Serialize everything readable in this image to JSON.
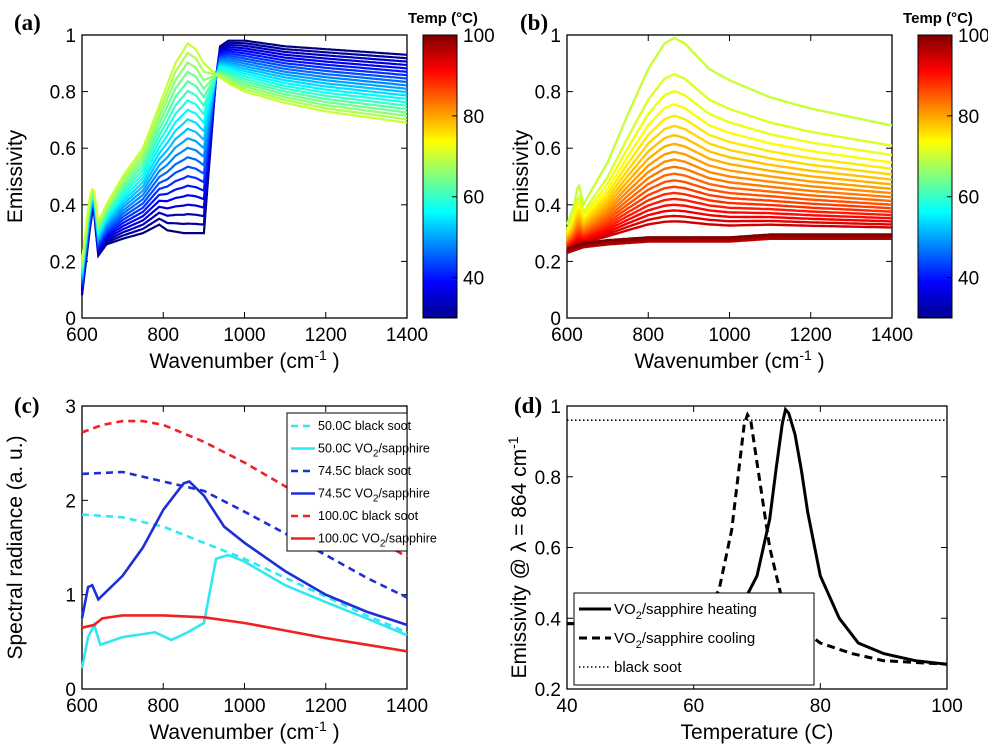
{
  "chart_data": [
    {
      "type": "line",
      "panel": "(a)",
      "xlabel": "Wavenumber (cm⁻¹)",
      "ylabel": "Emissivity",
      "xlim": [
        600,
        1400
      ],
      "ylim": [
        0,
        1
      ],
      "xticks": [
        "600",
        "800",
        "1000",
        "1200",
        "1400"
      ],
      "yticks": [
        "0",
        "0.2",
        "0.4",
        "0.6",
        "0.8",
        "1"
      ],
      "colorbar": {
        "title": "Temp (°C)",
        "range": [
          30,
          100
        ],
        "ticks": [
          "40",
          "60",
          "80",
          "100"
        ],
        "colormap": "jet"
      },
      "temperature_range": [
        30,
        70
      ],
      "curve_count": 21,
      "endpoint_curves": {
        "low_temp": {
          "x": [
            600,
            618,
            628,
            640,
            660,
            700,
            750,
            790,
            810,
            850,
            900,
            930,
            940,
            960,
            1000,
            1100,
            1200,
            1300,
            1400
          ],
          "y": [
            0.08,
            0.3,
            0.4,
            0.22,
            0.26,
            0.28,
            0.3,
            0.33,
            0.31,
            0.3,
            0.3,
            0.85,
            0.96,
            0.98,
            0.98,
            0.96,
            0.95,
            0.94,
            0.93
          ]
        },
        "high_temp": {
          "x": [
            600,
            618,
            628,
            640,
            660,
            700,
            750,
            790,
            830,
            860,
            880,
            900,
            930,
            960,
            1000,
            1100,
            1200,
            1300,
            1400
          ],
          "y": [
            0.2,
            0.42,
            0.47,
            0.34,
            0.4,
            0.5,
            0.6,
            0.75,
            0.9,
            0.97,
            0.95,
            0.9,
            0.86,
            0.83,
            0.8,
            0.76,
            0.73,
            0.71,
            0.69
          ]
        }
      }
    },
    {
      "type": "line",
      "panel": "(b)",
      "xlabel": "Wavenumber (cm⁻¹)",
      "ylabel": "Emissivity",
      "xlim": [
        600,
        1400
      ],
      "ylim": [
        0,
        1
      ],
      "xticks": [
        "600",
        "800",
        "1000",
        "1200",
        "1400"
      ],
      "yticks": [
        "0",
        "0.2",
        "0.4",
        "0.6",
        "0.8",
        "1"
      ],
      "colorbar": {
        "title": "Temp (°C)",
        "range": [
          30,
          100
        ],
        "ticks": [
          "40",
          "60",
          "80",
          "100"
        ],
        "colormap": "jet"
      },
      "temperature_range": [
        70,
        100
      ],
      "curve_count": 24,
      "endpoint_curves": {
        "peak_curve": {
          "x": [
            600,
            618,
            628,
            640,
            660,
            700,
            750,
            800,
            840,
            864,
            890,
            950,
            1000,
            1100,
            1200,
            1300,
            1400
          ],
          "y": [
            0.33,
            0.4,
            0.48,
            0.4,
            0.45,
            0.55,
            0.72,
            0.88,
            0.97,
            0.99,
            0.97,
            0.88,
            0.84,
            0.78,
            0.74,
            0.71,
            0.68
          ]
        },
        "high_temp": {
          "x": [
            600,
            640,
            700,
            800,
            900,
            1000,
            1100,
            1200,
            1300,
            1400
          ],
          "y": [
            0.23,
            0.25,
            0.26,
            0.27,
            0.27,
            0.27,
            0.28,
            0.28,
            0.28,
            0.28
          ]
        }
      }
    },
    {
      "type": "line",
      "panel": "(c)",
      "xlabel": "Wavenumber (cm⁻¹)",
      "ylabel": "Spectral radiance (a. u.)",
      "xlim": [
        600,
        1400
      ],
      "ylim": [
        0,
        3
      ],
      "xticks": [
        "600",
        "800",
        "1000",
        "1200",
        "1400"
      ],
      "yticks": [
        "0",
        "1",
        "2",
        "3"
      ],
      "legend_position": "top-right",
      "series": [
        {
          "name": "50.0C black soot",
          "color": "#33e6f0",
          "dash": "dashed",
          "x": [
            600,
            700,
            800,
            900,
            1000,
            1100,
            1200,
            1300,
            1400
          ],
          "y": [
            1.85,
            1.82,
            1.72,
            1.55,
            1.38,
            1.18,
            0.98,
            0.78,
            0.6
          ]
        },
        {
          "name": "50.0C VO2/sapphire",
          "color": "#33e6f0",
          "dash": "solid",
          "x": [
            600,
            615,
            630,
            645,
            700,
            780,
            820,
            860,
            900,
            930,
            960,
            1000,
            1100,
            1200,
            1300,
            1400
          ],
          "y": [
            0.22,
            0.55,
            0.68,
            0.47,
            0.55,
            0.6,
            0.52,
            0.6,
            0.7,
            1.38,
            1.42,
            1.35,
            1.1,
            0.92,
            0.75,
            0.57
          ]
        },
        {
          "name": "74.5C black soot",
          "color": "#1f2fd6",
          "dash": "dashed",
          "x": [
            600,
            700,
            800,
            900,
            1000,
            1100,
            1200,
            1300,
            1400
          ],
          "y": [
            2.28,
            2.3,
            2.2,
            2.1,
            1.88,
            1.65,
            1.42,
            1.18,
            0.97
          ]
        },
        {
          "name": "74.5C VO2/sapphire",
          "color": "#1f2fd6",
          "dash": "solid",
          "x": [
            600,
            615,
            625,
            640,
            700,
            750,
            800,
            850,
            864,
            900,
            950,
            1000,
            1100,
            1200,
            1300,
            1400
          ],
          "y": [
            0.75,
            1.08,
            1.1,
            0.95,
            1.2,
            1.5,
            1.9,
            2.18,
            2.2,
            2.05,
            1.72,
            1.55,
            1.25,
            1.0,
            0.82,
            0.68
          ]
        },
        {
          "name": "100.0C black soot",
          "color": "#ee2222",
          "dash": "dashed",
          "x": [
            600,
            650,
            700,
            750,
            800,
            900,
            1000,
            1100,
            1200,
            1300,
            1400
          ],
          "y": [
            2.72,
            2.8,
            2.84,
            2.84,
            2.8,
            2.62,
            2.4,
            2.15,
            1.9,
            1.65,
            1.4
          ]
        },
        {
          "name": "100.0C VO2/sapphire",
          "color": "#ee2222",
          "dash": "solid",
          "x": [
            600,
            630,
            650,
            700,
            800,
            900,
            1000,
            1100,
            1200,
            1300,
            1400
          ],
          "y": [
            0.65,
            0.68,
            0.75,
            0.78,
            0.78,
            0.76,
            0.7,
            0.62,
            0.54,
            0.47,
            0.4
          ]
        }
      ]
    },
    {
      "type": "line",
      "panel": "(d)",
      "xlabel": "Temperature (C)",
      "ylabel": "Emissivity @ λ = 864 cm⁻¹",
      "xlim": [
        40,
        100
      ],
      "ylim": [
        0.2,
        1
      ],
      "xticks": [
        "40",
        "60",
        "80",
        "100"
      ],
      "yticks": [
        "0.2",
        "0.4",
        "0.6",
        "0.8",
        "1"
      ],
      "legend_position": "bottom-left",
      "series": [
        {
          "name": "VO2/sapphire heating",
          "color": "#000000",
          "dash": "solid",
          "x": [
            40,
            50,
            60,
            65,
            68,
            70,
            72,
            73,
            74,
            74.5,
            75,
            76,
            77,
            78,
            80,
            83,
            86,
            90,
            95,
            100
          ],
          "y": [
            0.385,
            0.385,
            0.39,
            0.41,
            0.45,
            0.52,
            0.68,
            0.82,
            0.95,
            0.99,
            0.98,
            0.92,
            0.82,
            0.7,
            0.52,
            0.4,
            0.33,
            0.3,
            0.28,
            0.27
          ]
        },
        {
          "name": "VO2/sapphire cooling",
          "color": "#000000",
          "dash": "dashed",
          "x": [
            40,
            50,
            58,
            62,
            64,
            66,
            67,
            68,
            68.5,
            69,
            70,
            72,
            74,
            77,
            80,
            85,
            90,
            95,
            100
          ],
          "y": [
            0.385,
            0.385,
            0.395,
            0.42,
            0.48,
            0.65,
            0.8,
            0.95,
            0.975,
            0.96,
            0.84,
            0.6,
            0.45,
            0.37,
            0.33,
            0.3,
            0.28,
            0.275,
            0.27
          ]
        },
        {
          "name": "black soot",
          "color": "#000000",
          "dash": "dotted",
          "x": [
            40,
            100
          ],
          "y": [
            0.96,
            0.96
          ]
        }
      ]
    }
  ]
}
